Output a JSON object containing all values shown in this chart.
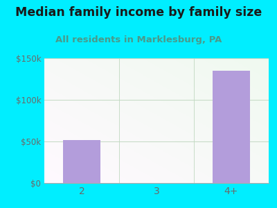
{
  "title": "Median family income by family size",
  "subtitle": "All residents in Marklesburg, PA",
  "categories": [
    "2",
    "3",
    "4+"
  ],
  "values": [
    52000,
    0,
    135000
  ],
  "bar_color": "#b39ddb",
  "background_color": "#00eeff",
  "title_color": "#1a1a1a",
  "subtitle_color": "#4a9a8a",
  "tick_color": "#6a6a6a",
  "ylim": [
    0,
    150000
  ],
  "yticks": [
    0,
    50000,
    100000,
    150000
  ],
  "ytick_labels": [
    "$0",
    "$50k",
    "$100k",
    "$150k"
  ],
  "title_fontsize": 12.5,
  "subtitle_fontsize": 9.5,
  "grid_color": "#d0e8d0",
  "plot_grad_tl": "#f0faf0",
  "plot_grad_br": "#e8f8e0"
}
